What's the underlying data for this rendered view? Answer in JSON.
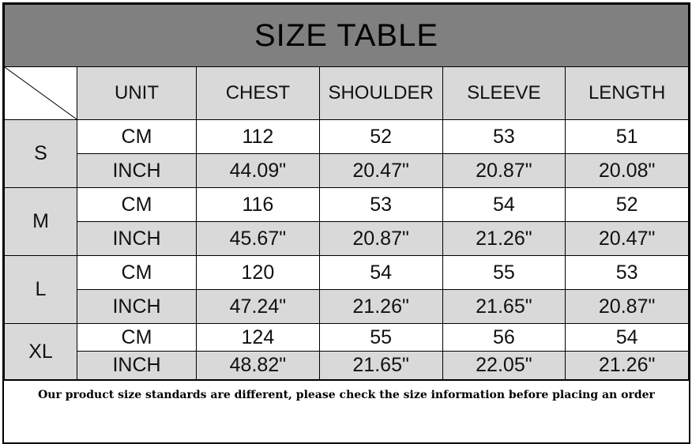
{
  "title": "SIZE TABLE",
  "headers": [
    "UNIT",
    "CHEST",
    "SHOULDER",
    "SLEEVE",
    "LENGTH"
  ],
  "sizes": [
    {
      "size": "S",
      "rows": [
        {
          "unit": "CM",
          "values": [
            "112",
            "52",
            "53",
            "51"
          ]
        },
        {
          "unit": "INCH",
          "values": [
            "44.09\"",
            "20.47\"",
            "20.87\"",
            "20.08\""
          ]
        }
      ]
    },
    {
      "size": "M",
      "rows": [
        {
          "unit": "CM",
          "values": [
            "116",
            "53",
            "54",
            "52"
          ]
        },
        {
          "unit": "INCH",
          "values": [
            "45.67\"",
            "20.87\"",
            "21.26\"",
            "20.47\""
          ]
        }
      ]
    },
    {
      "size": "L",
      "rows": [
        {
          "unit": "CM",
          "values": [
            "120",
            "54",
            "55",
            "53"
          ]
        },
        {
          "unit": "INCH",
          "values": [
            "47.24\"",
            "21.26\"",
            "21.65\"",
            "20.87\""
          ]
        }
      ]
    },
    {
      "size": "XL",
      "rows": [
        {
          "unit": "CM",
          "values": [
            "124",
            "55",
            "56",
            "54"
          ]
        },
        {
          "unit": "INCH",
          "values": [
            "48.82\"",
            "21.65\"",
            "22.05\"",
            "21.26\""
          ]
        }
      ]
    }
  ],
  "note": "Our product size standards are different, please check the size information before placing an order",
  "colors": {
    "title_bg": "#808080",
    "cell_gray": "#d9d9d9"
  }
}
